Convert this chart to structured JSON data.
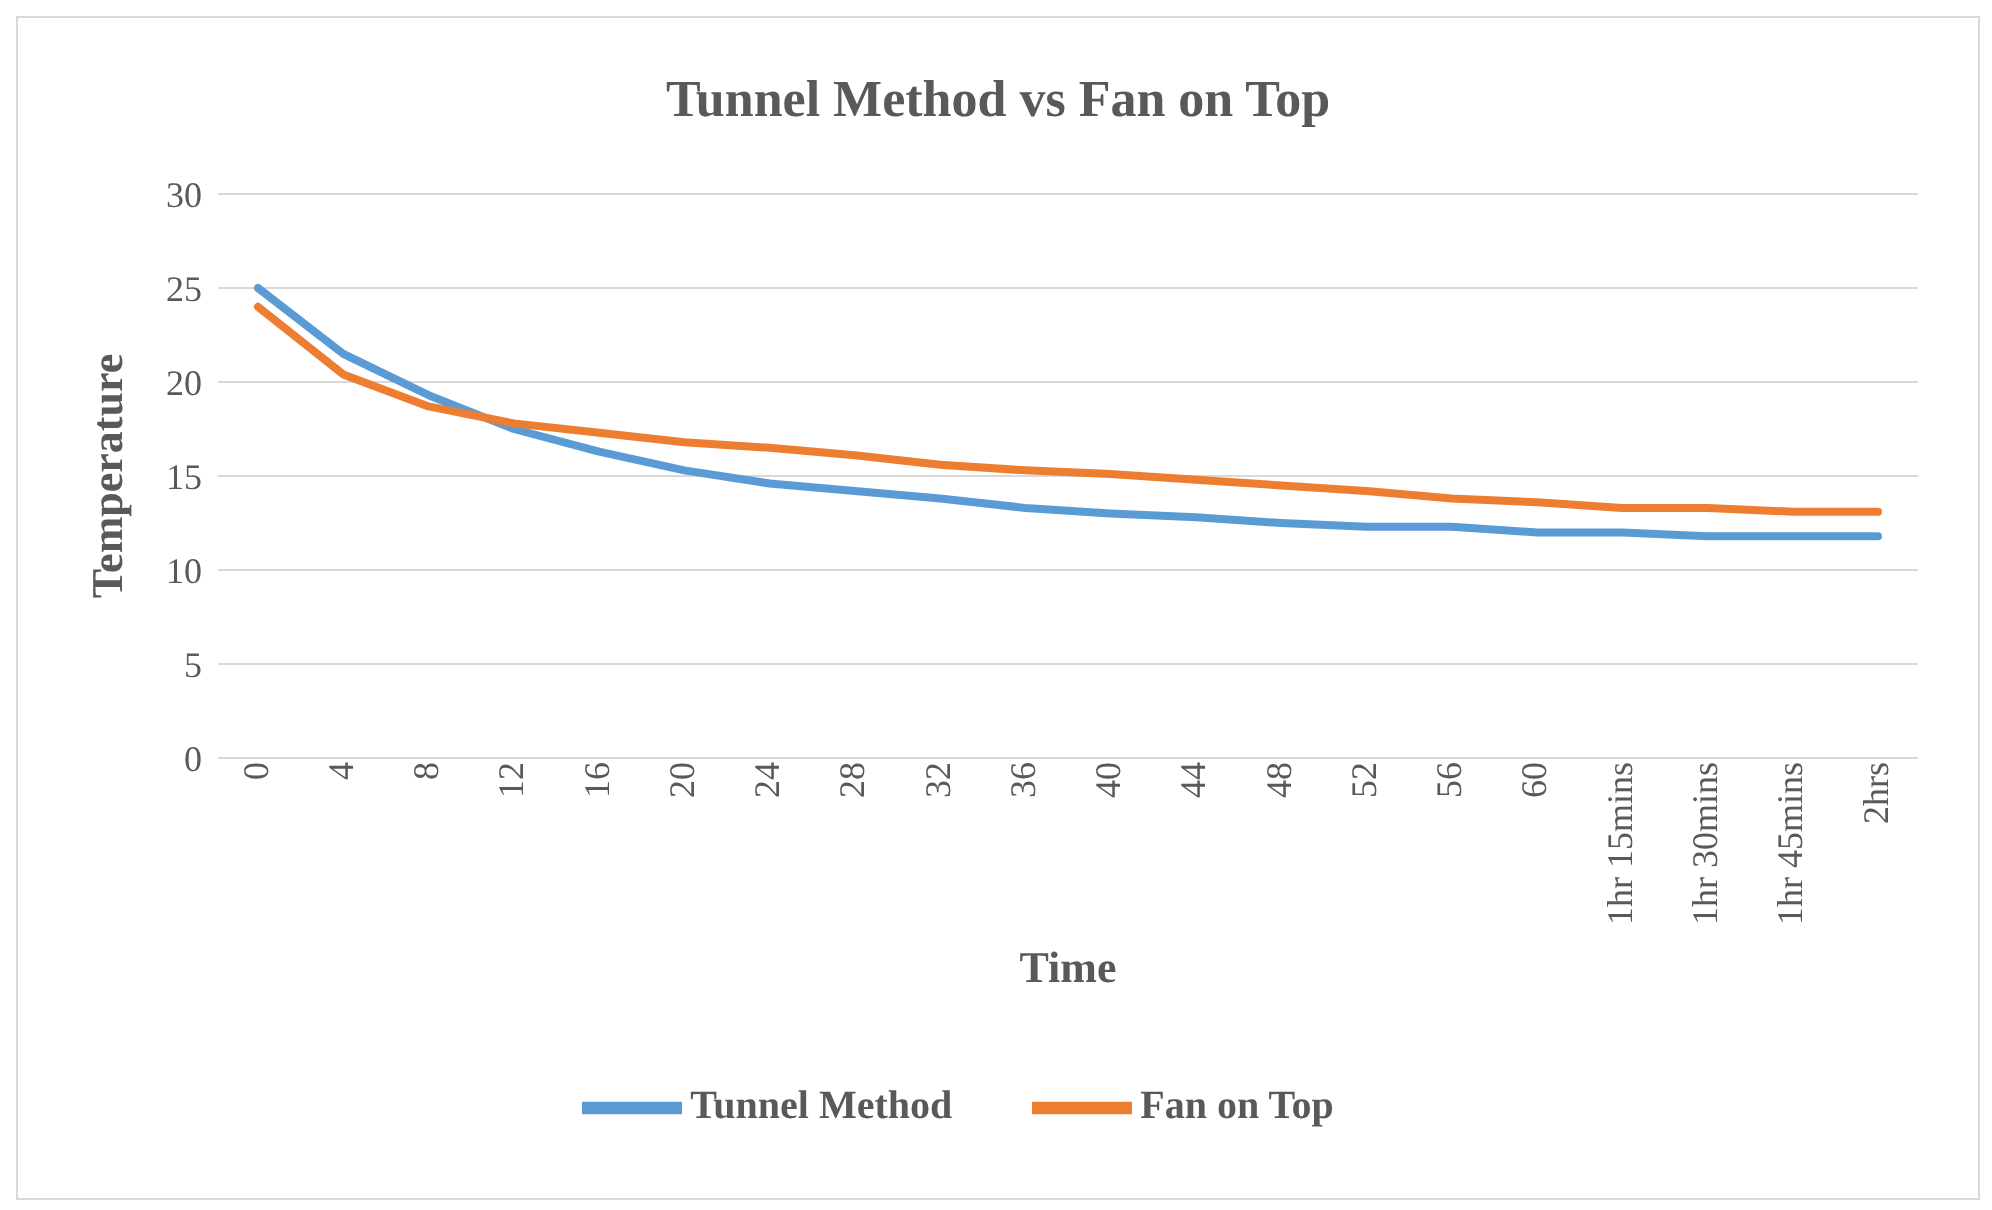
{
  "chart_data": {
    "type": "line",
    "title": "Tunnel Method vs Fan on Top",
    "xlabel": "Time",
    "ylabel": "Temperature",
    "categories": [
      "0",
      "4",
      "8",
      "12",
      "16",
      "20",
      "24",
      "28",
      "32",
      "36",
      "40",
      "44",
      "48",
      "52",
      "56",
      "60",
      "1hr 15mins",
      "1hr 30mins",
      "1hr 45mins",
      "2hrs"
    ],
    "series": [
      {
        "name": "Tunnel Method",
        "color": "#5b9bd5",
        "values": [
          25,
          21.5,
          19.3,
          17.5,
          16.3,
          15.3,
          14.6,
          14.2,
          13.8,
          13.3,
          13,
          12.8,
          12.5,
          12.3,
          12.3,
          12,
          12,
          11.8,
          11.8,
          11.8
        ]
      },
      {
        "name": "Fan on Top",
        "color": "#ed7d31",
        "values": [
          24,
          20.4,
          18.7,
          17.8,
          17.3,
          16.8,
          16.5,
          16.1,
          15.6,
          15.3,
          15.1,
          14.8,
          14.5,
          14.2,
          13.8,
          13.6,
          13.3,
          13.3,
          13.1,
          13.1
        ]
      }
    ],
    "ylim": [
      0,
      30
    ],
    "yticks": [
      0,
      5,
      10,
      15,
      20,
      25,
      30
    ],
    "grid": "y",
    "legend": "bottom",
    "marker": "none",
    "line_style": "solid"
  }
}
